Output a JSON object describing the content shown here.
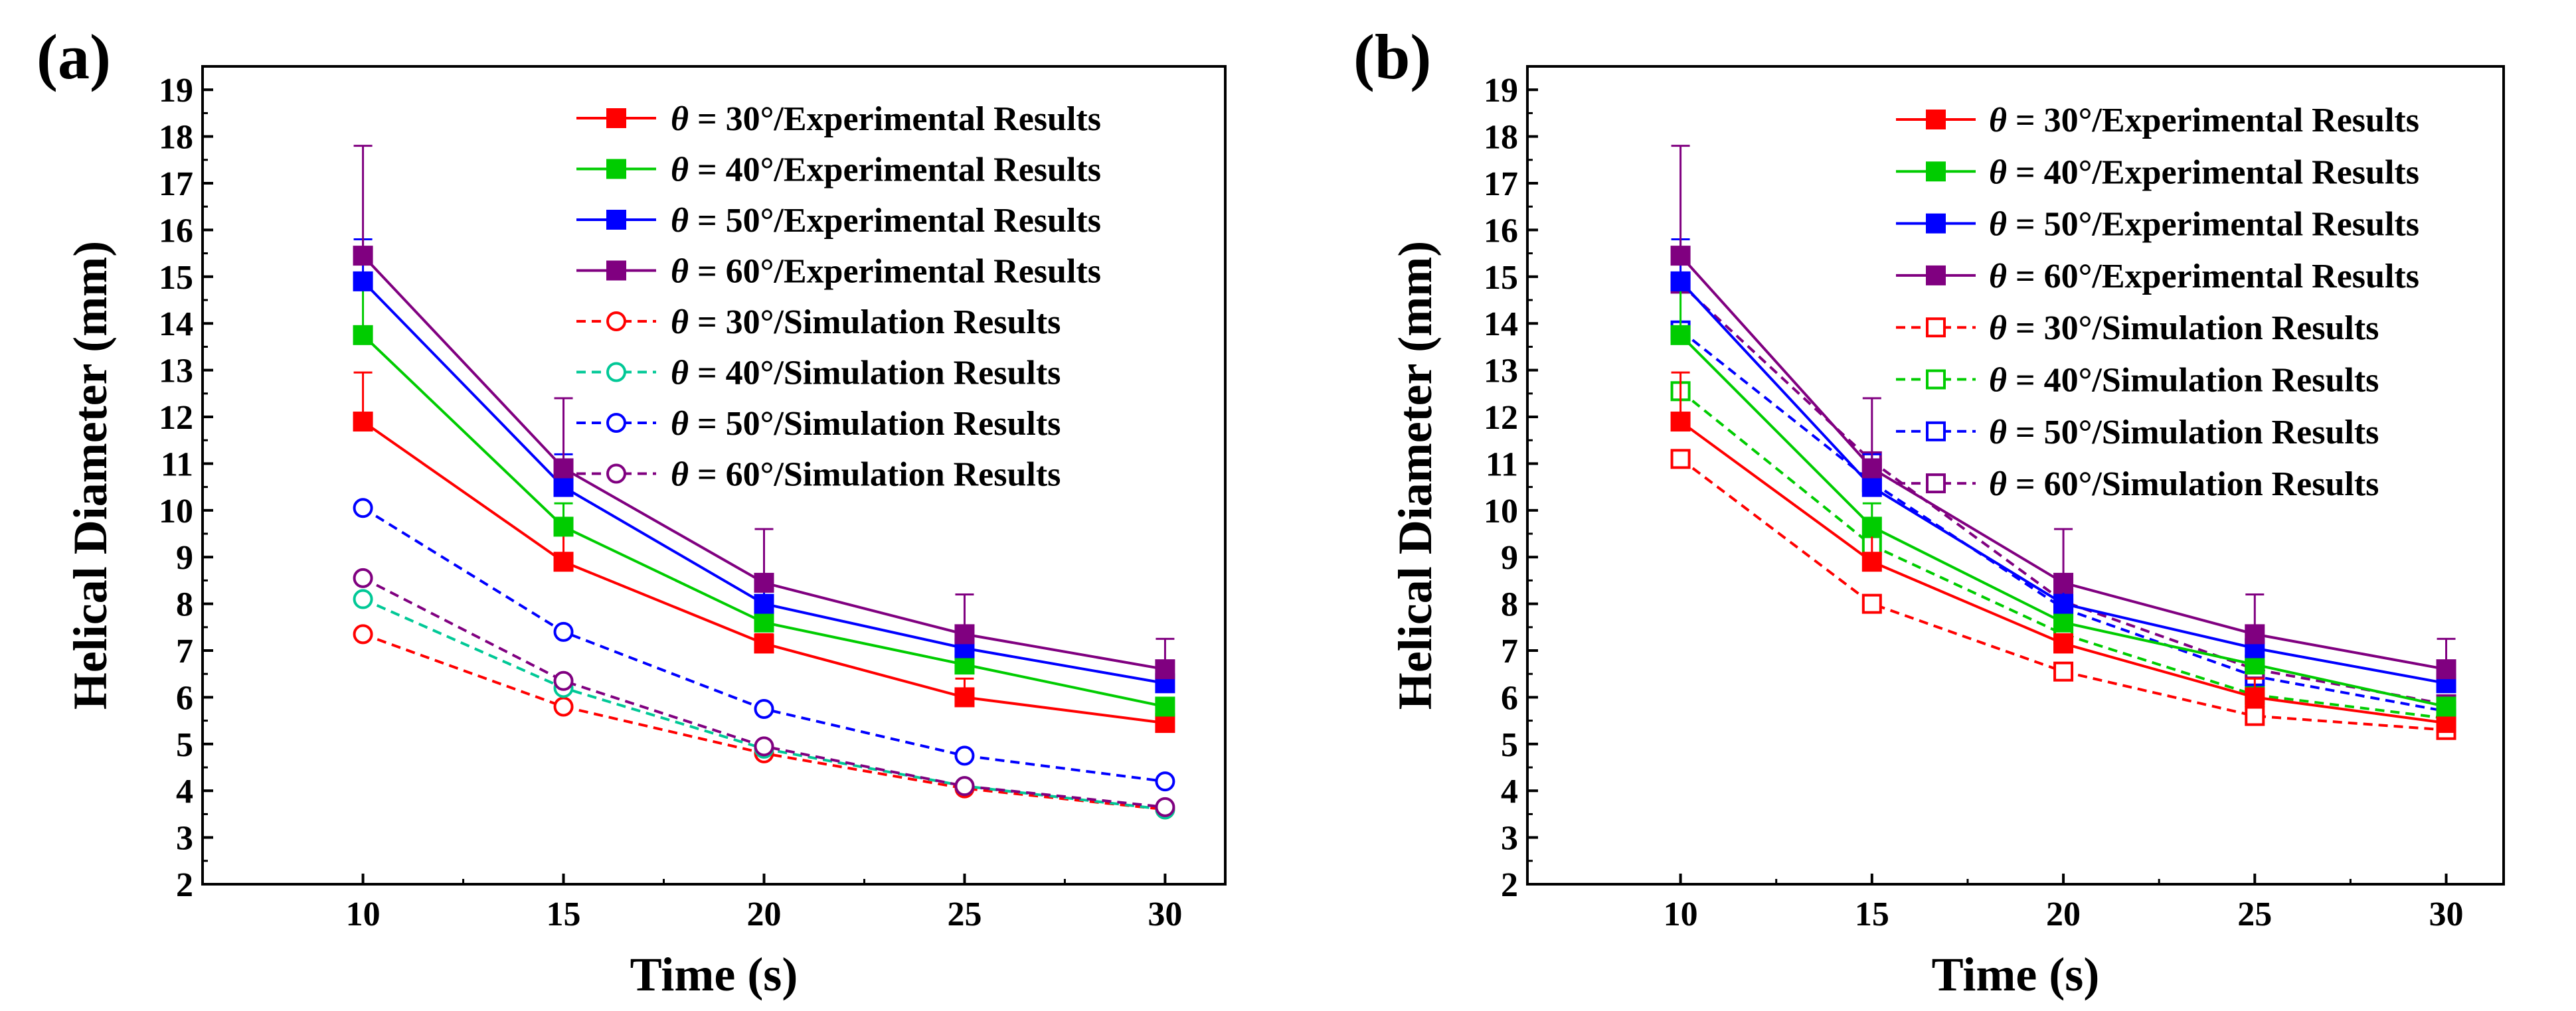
{
  "chart_data": [
    {
      "panel": "(a)",
      "type": "line",
      "xlabel": "Time (s)",
      "ylabel": "Helical Diameter (mm)",
      "xlim": [
        6,
        31.5
      ],
      "ylim": [
        2,
        19.5
      ],
      "xticks": [
        10,
        15,
        20,
        25,
        30
      ],
      "yticks": [
        2,
        3,
        4,
        5,
        6,
        7,
        8,
        9,
        10,
        11,
        12,
        13,
        14,
        15,
        16,
        17,
        18,
        19
      ],
      "x": [
        10,
        15,
        20,
        25,
        30
      ],
      "series": [
        {
          "name_prefix": "θ",
          "name_suffix": " = 30°/Experimental Results",
          "color": "#ff0000",
          "dash": "solid",
          "marker": "filled-square",
          "values": [
            11.9,
            8.9,
            7.15,
            6.0,
            5.45
          ],
          "errors": [
            1.05,
            0.7,
            0.2,
            0.4,
            0.1
          ]
        },
        {
          "name_prefix": "θ",
          "name_suffix": " = 40°/Experimental Results",
          "color": "#00cc00",
          "dash": "solid",
          "marker": "filled-square",
          "values": [
            13.75,
            9.65,
            7.6,
            6.7,
            5.8
          ],
          "errors": [
            1.15,
            0.5,
            0.25,
            0.35,
            0.15
          ]
        },
        {
          "name_prefix": "θ",
          "name_suffix": " = 50°/Experimental Results",
          "color": "#0000ff",
          "dash": "solid",
          "marker": "filled-square",
          "values": [
            14.9,
            10.5,
            8.0,
            7.05,
            6.3
          ],
          "errors": [
            0.9,
            0.7,
            0.4,
            0.4,
            0.35
          ]
        },
        {
          "name_prefix": "θ",
          "name_suffix": " = 60°/Experimental Results",
          "color": "#800080",
          "dash": "solid",
          "marker": "filled-square",
          "values": [
            15.45,
            10.9,
            8.45,
            7.35,
            6.6
          ],
          "errors": [
            2.35,
            1.5,
            1.15,
            0.85,
            0.65
          ]
        },
        {
          "name_prefix": "θ",
          "name_suffix": " = 30°/Simulation Results",
          "color": "#ff0000",
          "dash": "dashed",
          "marker": "open-circle",
          "values": [
            7.35,
            5.8,
            4.8,
            4.05,
            3.6
          ],
          "errors": null
        },
        {
          "name_prefix": "θ",
          "name_suffix": " = 40°/Simulation Results",
          "color": "#00c896",
          "dash": "dashed",
          "marker": "open-circle",
          "values": [
            8.1,
            6.2,
            4.9,
            4.1,
            3.6
          ],
          "errors": null
        },
        {
          "name_prefix": "θ",
          "name_suffix": " = 50°/Simulation Results",
          "color": "#0000ff",
          "dash": "dashed",
          "marker": "open-circle",
          "values": [
            10.05,
            7.4,
            5.75,
            4.75,
            4.2
          ],
          "errors": null
        },
        {
          "name_prefix": "θ",
          "name_suffix": " = 60°/Simulation Results",
          "color": "#800080",
          "dash": "dashed",
          "marker": "open-circle",
          "values": [
            8.55,
            6.35,
            4.95,
            4.1,
            3.65
          ],
          "errors": null
        }
      ]
    },
    {
      "panel": "(b)",
      "type": "line",
      "xlabel": "Time (s)",
      "ylabel": "Helical Diameter (mm)",
      "xlim": [
        6,
        31.5
      ],
      "ylim": [
        2,
        19.5
      ],
      "xticks": [
        10,
        15,
        20,
        25,
        30
      ],
      "yticks": [
        2,
        3,
        4,
        5,
        6,
        7,
        8,
        9,
        10,
        11,
        12,
        13,
        14,
        15,
        16,
        17,
        18,
        19
      ],
      "x": [
        10,
        15,
        20,
        25,
        30
      ],
      "series": [
        {
          "name_prefix": "θ",
          "name_suffix": " = 30°/Experimental Results",
          "color": "#ff0000",
          "dash": "solid",
          "marker": "filled-square",
          "values": [
            11.9,
            8.9,
            7.15,
            6.0,
            5.45
          ],
          "errors": [
            1.05,
            0.7,
            0.2,
            0.4,
            0.1
          ]
        },
        {
          "name_prefix": "θ",
          "name_suffix": " = 40°/Experimental Results",
          "color": "#00cc00",
          "dash": "solid",
          "marker": "filled-square",
          "values": [
            13.75,
            9.65,
            7.6,
            6.7,
            5.8
          ],
          "errors": [
            1.15,
            0.5,
            0.25,
            0.35,
            0.15
          ]
        },
        {
          "name_prefix": "θ",
          "name_suffix": " = 50°/Experimental Results",
          "color": "#0000ff",
          "dash": "solid",
          "marker": "filled-square",
          "values": [
            14.9,
            10.5,
            8.0,
            7.05,
            6.3
          ],
          "errors": [
            0.9,
            0.7,
            0.4,
            0.4,
            0.35
          ]
        },
        {
          "name_prefix": "θ",
          "name_suffix": " = 60°/Experimental Results",
          "color": "#800080",
          "dash": "solid",
          "marker": "filled-square",
          "values": [
            15.45,
            10.9,
            8.45,
            7.35,
            6.6
          ],
          "errors": [
            2.35,
            1.5,
            1.15,
            0.85,
            0.65
          ]
        },
        {
          "name_prefix": "θ",
          "name_suffix": " = 30°/Simulation Results",
          "color": "#ff0000",
          "dash": "dashed",
          "marker": "open-square",
          "values": [
            11.1,
            8.0,
            6.55,
            5.6,
            5.3
          ],
          "errors": null
        },
        {
          "name_prefix": "θ",
          "name_suffix": " = 40°/Simulation Results",
          "color": "#00cc00",
          "dash": "dashed",
          "marker": "open-square",
          "values": [
            12.55,
            9.25,
            7.35,
            6.05,
            5.55
          ],
          "errors": null
        },
        {
          "name_prefix": "θ",
          "name_suffix": " = 50°/Simulation Results",
          "color": "#0000ff",
          "dash": "dashed",
          "marker": "open-square",
          "values": [
            13.85,
            10.6,
            7.9,
            6.45,
            5.7
          ],
          "errors": null
        },
        {
          "name_prefix": "θ",
          "name_suffix": " = 60°/Simulation Results",
          "color": "#800080",
          "dash": "dashed",
          "marker": "open-square",
          "values": [
            14.85,
            11.05,
            8.05,
            6.6,
            5.85
          ],
          "errors": null
        }
      ]
    }
  ]
}
